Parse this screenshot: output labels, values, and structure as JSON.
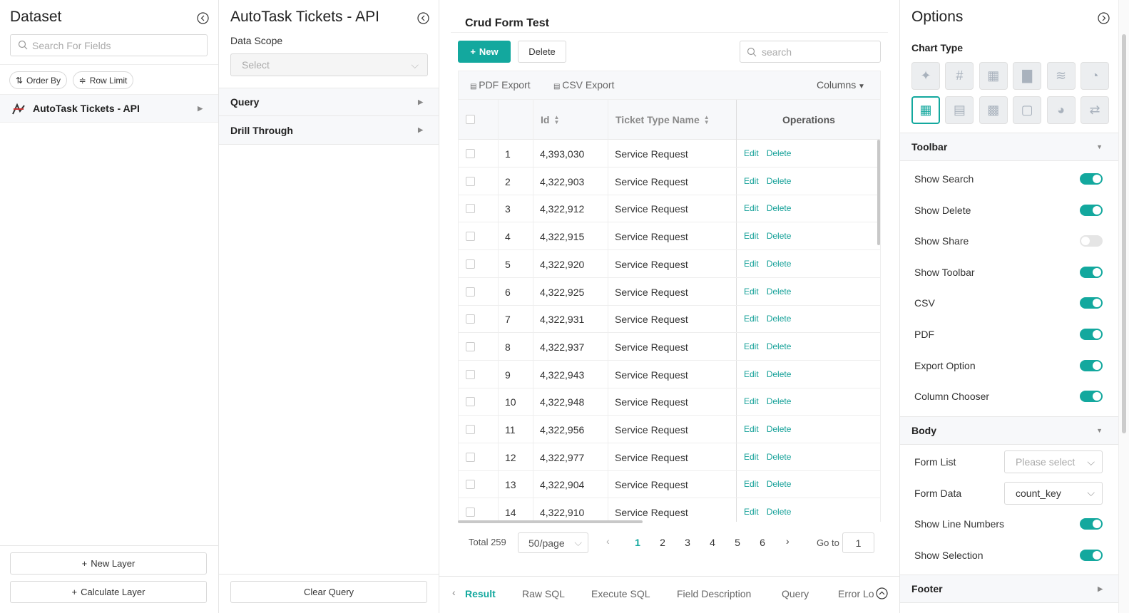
{
  "dataset_panel": {
    "title": "Dataset",
    "search_placeholder": "Search For Fields",
    "buttons": [
      "Order By",
      "Row Limit"
    ],
    "layers": [
      "AutoTask Tickets - API"
    ],
    "footer_buttons": [
      "New Layer",
      "Calculate Layer"
    ]
  },
  "query_panel": {
    "title": "AutoTask Tickets - API",
    "data_scope_label": "Data Scope",
    "data_scope_placeholder": "Select",
    "sections": [
      "Query",
      "Drill Through"
    ],
    "clear_button": "Clear Query"
  },
  "report": {
    "title": "Crud Form Test",
    "new_button": "New",
    "delete_button": "Delete",
    "search_placeholder": "search",
    "exports": [
      "PDF Export",
      "CSV Export"
    ],
    "columns_button": "Columns",
    "table": {
      "headers": [
        "Id",
        "Ticket Type Name",
        "Operations"
      ],
      "actions": [
        "Edit",
        "Delete"
      ],
      "rows": [
        [
          1,
          "4,393,030",
          "Service Request"
        ],
        [
          2,
          "4,322,903",
          "Service Request"
        ],
        [
          3,
          "4,322,912",
          "Service Request"
        ],
        [
          4,
          "4,322,915",
          "Service Request"
        ],
        [
          5,
          "4,322,920",
          "Service Request"
        ],
        [
          6,
          "4,322,925",
          "Service Request"
        ],
        [
          7,
          "4,322,931",
          "Service Request"
        ],
        [
          8,
          "4,322,937",
          "Service Request"
        ],
        [
          9,
          "4,322,943",
          "Service Request"
        ],
        [
          10,
          "4,322,948",
          "Service Request"
        ],
        [
          11,
          "4,322,956",
          "Service Request"
        ],
        [
          12,
          "4,322,977",
          "Service Request"
        ],
        [
          13,
          "4,322,904",
          "Service Request"
        ],
        [
          14,
          "4,322,910",
          "Service Request"
        ]
      ]
    },
    "pagination": {
      "total": "Total 259",
      "page_size": "50/page",
      "pages": [
        1,
        2,
        3,
        4,
        5,
        6
      ],
      "goto_label": "Go to",
      "goto_value": 1
    },
    "tabs": [
      "Result",
      "Raw SQL",
      "Execute SQL",
      "Field Description",
      "Query",
      "Error Lo"
    ]
  },
  "options_panel": {
    "title": "Options",
    "chart_type_label": "Chart Type",
    "toolbar": {
      "title": "Toolbar",
      "toggles": [
        {
          "label": "Show Search",
          "on": true
        },
        {
          "label": "Show Delete",
          "on": true
        },
        {
          "label": "Show Share",
          "on": false
        },
        {
          "label": "Show Toolbar",
          "on": true
        },
        {
          "label": "CSV",
          "on": true
        },
        {
          "label": "PDF",
          "on": true
        },
        {
          "label": "Export Option",
          "on": true
        },
        {
          "label": "Column Chooser",
          "on": true
        }
      ]
    },
    "body": {
      "title": "Body",
      "selects": [
        {
          "label": "Form List",
          "value": "Please select"
        },
        {
          "label": "Form Data",
          "value": "count_key"
        }
      ],
      "toggles": [
        {
          "label": "Show Line Numbers",
          "on": true
        },
        {
          "label": "Show Selection",
          "on": true
        }
      ]
    },
    "footer": {
      "title": "Footer"
    }
  }
}
